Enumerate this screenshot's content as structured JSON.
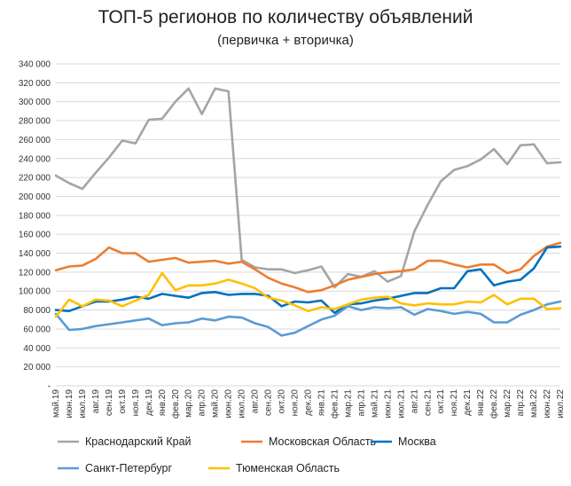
{
  "chart_data": {
    "type": "line",
    "title": "ТОП-5 регионов по количеству объявлений",
    "subtitle": "(первичка + вторичка)",
    "categories": [
      "май.19",
      "июн.19",
      "июл.19",
      "авг.19",
      "сен.19",
      "окт.19",
      "ноя.19",
      "дек.19",
      "янв.20",
      "фев.20",
      "мар.20",
      "апр.20",
      "май.20",
      "июн.20",
      "июл.20",
      "авг.20",
      "сен.20",
      "окт.20",
      "ноя.20",
      "дек.20",
      "янв.21",
      "фев.21",
      "мар.21",
      "апр.21",
      "май.21",
      "июн.21",
      "июл.21",
      "авг.21",
      "сен.21",
      "окт.21",
      "ноя.21",
      "дек.21",
      "янв.22",
      "фев.22",
      "мар.22",
      "апр.22",
      "май.22",
      "июн.22",
      "июл.22"
    ],
    "ylim": [
      0,
      340000
    ],
    "yticks": [
      {
        "value": 0,
        "label": "-"
      },
      {
        "value": 20000,
        "label": "20 000"
      },
      {
        "value": 40000,
        "label": "40 000"
      },
      {
        "value": 60000,
        "label": "60 000"
      },
      {
        "value": 80000,
        "label": "80 000"
      },
      {
        "value": 100000,
        "label": "100 000"
      },
      {
        "value": 120000,
        "label": "120 000"
      },
      {
        "value": 140000,
        "label": "140 000"
      },
      {
        "value": 160000,
        "label": "160 000"
      },
      {
        "value": 180000,
        "label": "180 000"
      },
      {
        "value": 200000,
        "label": "200 000"
      },
      {
        "value": 220000,
        "label": "220 000"
      },
      {
        "value": 240000,
        "label": "240 000"
      },
      {
        "value": 260000,
        "label": "260 000"
      },
      {
        "value": 280000,
        "label": "280 000"
      },
      {
        "value": 300000,
        "label": "300 000"
      },
      {
        "value": 320000,
        "label": "320 000"
      },
      {
        "value": 340000,
        "label": "340 000"
      }
    ],
    "grid": true,
    "legend_position": "bottom",
    "series": [
      {
        "name": "Краснодарский Край",
        "color": "#a5a5a5",
        "values": [
          222000,
          214000,
          208000,
          225000,
          241000,
          259000,
          256000,
          281000,
          282000,
          300000,
          314000,
          287000,
          314000,
          311000,
          133000,
          125000,
          123000,
          123000,
          119000,
          122000,
          126000,
          104000,
          118000,
          115000,
          121000,
          110000,
          116000,
          163000,
          191000,
          216000,
          228000,
          232000,
          239000,
          250000,
          234000,
          254000,
          255000,
          235000,
          236000
        ]
      },
      {
        "name": "Московская Область",
        "color": "#ed7d31",
        "values": [
          122000,
          126000,
          127000,
          134000,
          146000,
          140000,
          140000,
          131000,
          133000,
          135000,
          130000,
          131000,
          132000,
          129000,
          131000,
          123000,
          114000,
          108000,
          104000,
          99000,
          101000,
          106000,
          112000,
          115000,
          118000,
          120000,
          121000,
          123000,
          132000,
          132000,
          128000,
          125000,
          128000,
          128000,
          119000,
          123000,
          137000,
          147000,
          151000
        ]
      },
      {
        "name": "Москва",
        "color": "#0070c0",
        "values": [
          80000,
          79000,
          84000,
          89000,
          89000,
          91000,
          94000,
          92000,
          97000,
          95000,
          93000,
          98000,
          99000,
          96000,
          97000,
          97000,
          95000,
          84000,
          89000,
          88000,
          90000,
          77000,
          86000,
          87000,
          90000,
          92000,
          95000,
          98000,
          98000,
          103000,
          103000,
          121000,
          123000,
          106000,
          110000,
          112000,
          124000,
          146000,
          147000
        ]
      },
      {
        "name": "Санкт-Петербург",
        "color": "#5b9bd5",
        "values": [
          76000,
          59000,
          60000,
          63000,
          65000,
          67000,
          69000,
          71000,
          64000,
          66000,
          67000,
          71000,
          69000,
          73000,
          72000,
          66000,
          62000,
          53000,
          56000,
          63000,
          70000,
          74000,
          84000,
          80000,
          83000,
          82000,
          83000,
          75000,
          81000,
          79000,
          76000,
          78000,
          76000,
          67000,
          67000,
          75000,
          80000,
          86000,
          89000
        ]
      },
      {
        "name": "Тюменская Область",
        "color": "#ffc000",
        "values": [
          73000,
          91000,
          84000,
          91000,
          90000,
          84000,
          90000,
          96000,
          119000,
          101000,
          106000,
          106000,
          108000,
          112000,
          108000,
          103000,
          93000,
          90000,
          85000,
          79000,
          83000,
          81000,
          86000,
          91000,
          93000,
          94000,
          87000,
          85000,
          87000,
          86000,
          86000,
          89000,
          88000,
          96000,
          86000,
          92000,
          92000,
          81000,
          82000
        ]
      }
    ]
  }
}
